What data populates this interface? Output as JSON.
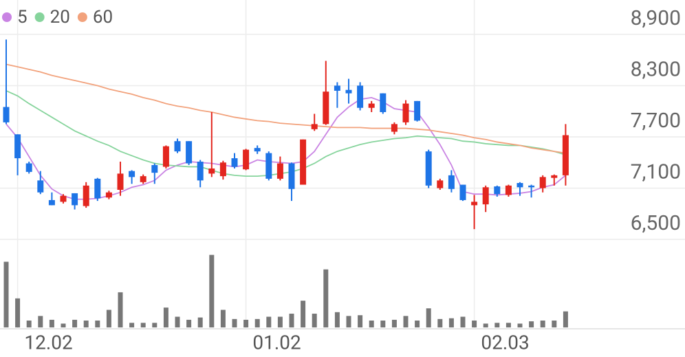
{
  "chart_data": {
    "type": "candlestick",
    "categories": [
      null,
      "12.02",
      null,
      null,
      null,
      null,
      null,
      null,
      null,
      null,
      null,
      null,
      null,
      null,
      null,
      null,
      null,
      null,
      null,
      null,
      null,
      "01.02",
      null,
      null,
      null,
      null,
      null,
      null,
      null,
      null,
      null,
      null,
      null,
      null,
      null,
      null,
      null,
      null,
      null,
      null,
      null,
      "02.03",
      null,
      null,
      null,
      null,
      null,
      null,
      null,
      null
    ],
    "open": [
      8050,
      7730,
      7390,
      7190,
      6960,
      6940,
      7040,
      6890,
      7210,
      6990,
      7080,
      7300,
      7170,
      7370,
      7350,
      7650,
      7650,
      7410,
      7270,
      7240,
      7450,
      7320,
      7570,
      7510,
      7210,
      7390,
      7140,
      7790,
      7850,
      8300,
      8250,
      8300,
      8040,
      8210,
      7760,
      7870,
      8120,
      7530,
      7100,
      7250,
      7140,
      6900,
      6910,
      7120,
      7020,
      7160,
      7130,
      7100,
      7220,
      7250
    ],
    "high": [
      8840,
      7730,
      7410,
      7300,
      7050,
      7030,
      7040,
      7170,
      7220,
      7070,
      7410,
      7310,
      7260,
      7390,
      7600,
      7680,
      7650,
      7430,
      7990,
      7420,
      7510,
      7560,
      7600,
      7530,
      7470,
      7400,
      7670,
      7970,
      8590,
      8340,
      8380,
      8340,
      8120,
      8210,
      7870,
      8130,
      8120,
      7550,
      7210,
      7310,
      7140,
      7020,
      7130,
      7130,
      7140,
      7170,
      7140,
      7250,
      7260,
      7850
    ],
    "low": [
      7850,
      7250,
      7270,
      7030,
      6900,
      6920,
      6850,
      6870,
      6950,
      6970,
      7010,
      7150,
      7150,
      7150,
      7330,
      7510,
      7370,
      7110,
      7230,
      7200,
      7330,
      7310,
      7500,
      7190,
      7190,
      6950,
      7140,
      7770,
      7840,
      8040,
      8090,
      8010,
      7990,
      7970,
      7730,
      7840,
      7880,
      7100,
      7080,
      7050,
      6950,
      6620,
      6820,
      7000,
      7000,
      7010,
      6990,
      7050,
      7130,
      7130
    ],
    "close": [
      7870,
      7450,
      7290,
      7050,
      6900,
      7010,
      6900,
      7130,
      6980,
      7050,
      7270,
      7230,
      7240,
      7280,
      7590,
      7530,
      7390,
      7190,
      7330,
      7400,
      7350,
      7550,
      7530,
      7210,
      7390,
      7090,
      7670,
      7850,
      8230,
      8240,
      8210,
      8040,
      8090,
      7990,
      7850,
      8090,
      7890,
      7130,
      7190,
      7090,
      6960,
      6940,
      7110,
      7030,
      7130,
      7110,
      7110,
      7230,
      7250,
      7720
    ],
    "up_color": "#e3261f",
    "down_color": "#1e74e6",
    "series": [
      {
        "name": "5",
        "color": "#c983e3",
        "values": [
          7850,
          7690,
          7470,
          7250,
          7090,
          7010,
          6970,
          6970,
          6980,
          7010,
          7050,
          7110,
          7140,
          7190,
          7310,
          7370,
          7410,
          7400,
          7390,
          7370,
          7350,
          7370,
          7430,
          7410,
          7400,
          7390,
          7410,
          7530,
          7730,
          7930,
          8050,
          8140,
          8160,
          8110,
          8030,
          8010,
          7990,
          7810,
          7610,
          7370,
          7060,
          7030,
          7030,
          7020,
          7030,
          7040,
          7060,
          7110,
          7140,
          7250
        ]
      },
      {
        "name": "20",
        "color": "#86d49c",
        "values": [
          8240,
          8180,
          8090,
          8010,
          7930,
          7850,
          7770,
          7710,
          7650,
          7600,
          7530,
          7480,
          7430,
          7390,
          7370,
          7360,
          7350,
          7350,
          7310,
          7270,
          7250,
          7240,
          7240,
          7250,
          7270,
          7290,
          7330,
          7390,
          7470,
          7530,
          7570,
          7610,
          7640,
          7660,
          7680,
          7690,
          7710,
          7700,
          7690,
          7680,
          7650,
          7640,
          7620,
          7610,
          7600,
          7600,
          7580,
          7560,
          7530,
          7490
        ]
      },
      {
        "name": "60",
        "color": "#f2a27c",
        "values": [
          8550,
          8520,
          8490,
          8460,
          8420,
          8390,
          8360,
          8330,
          8300,
          8260,
          8230,
          8200,
          8160,
          8130,
          8090,
          8060,
          8040,
          8010,
          7990,
          7960,
          7930,
          7910,
          7890,
          7880,
          7860,
          7850,
          7840,
          7830,
          7820,
          7810,
          7810,
          7810,
          7800,
          7800,
          7800,
          7800,
          7790,
          7780,
          7760,
          7740,
          7720,
          7690,
          7670,
          7640,
          7620,
          7600,
          7570,
          7550,
          7530,
          7510
        ]
      }
    ],
    "ylim": [
      6500,
      8900
    ],
    "yticks": [
      {
        "value": 6500,
        "label": "6,500"
      },
      {
        "value": 7100,
        "label": "7,100"
      },
      {
        "value": 7700,
        "label": "7,700"
      },
      {
        "value": 8300,
        "label": "8,300"
      },
      {
        "value": 8900,
        "label": "8,900"
      }
    ],
    "grid": true,
    "volume": {
      "color": "#777777",
      "ylim": [
        0,
        100
      ],
      "values": [
        86,
        38,
        9,
        15,
        10,
        5,
        10,
        9,
        9,
        23,
        46,
        6,
        6,
        6,
        26,
        14,
        10,
        13,
        95,
        23,
        11,
        10,
        11,
        14,
        14,
        18,
        35,
        18,
        76,
        20,
        15,
        16,
        9,
        9,
        10,
        15,
        9,
        25,
        11,
        12,
        14,
        9,
        5,
        6,
        6,
        5,
        8,
        9,
        9,
        21
      ]
    }
  }
}
